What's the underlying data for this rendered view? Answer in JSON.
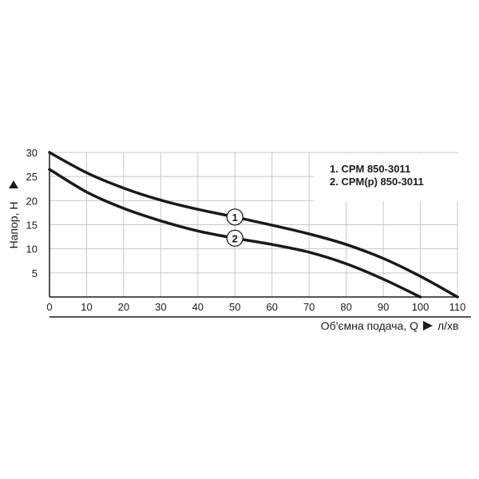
{
  "chart_data": {
    "type": "line",
    "xlabel": "Об'ємна подача, Q",
    "xunit": "л/хв",
    "ylabel": "Напор, Н",
    "xlim": [
      0,
      110
    ],
    "ylim": [
      0,
      30
    ],
    "x_ticks": [
      0,
      10,
      20,
      30,
      40,
      50,
      60,
      70,
      80,
      90,
      100,
      110
    ],
    "y_ticks": [
      5,
      10,
      15,
      20,
      25,
      30
    ],
    "grid": true,
    "legend_position": "top-right",
    "legend": [
      "1. CPM 850-3011",
      "2. CPM(p) 850-3011"
    ],
    "series": [
      {
        "name": "1. CPM 850-3011",
        "marker_label": "1",
        "marker_x": 50,
        "x": [
          0,
          10,
          20,
          30,
          40,
          50,
          60,
          70,
          80,
          90,
          100,
          110
        ],
        "y": [
          30,
          25.8,
          22.6,
          20.1,
          18.2,
          16.6,
          14.9,
          13.1,
          10.9,
          8.0,
          4.3,
          0
        ]
      },
      {
        "name": "2. CPM(p) 850-3011",
        "marker_label": "2",
        "marker_x": 50,
        "x": [
          0,
          10,
          20,
          30,
          40,
          50,
          60,
          70,
          80,
          90,
          100
        ],
        "y": [
          26.5,
          21.8,
          18.4,
          15.8,
          13.7,
          12.2,
          10.9,
          9.3,
          6.9,
          3.7,
          0
        ]
      }
    ]
  }
}
